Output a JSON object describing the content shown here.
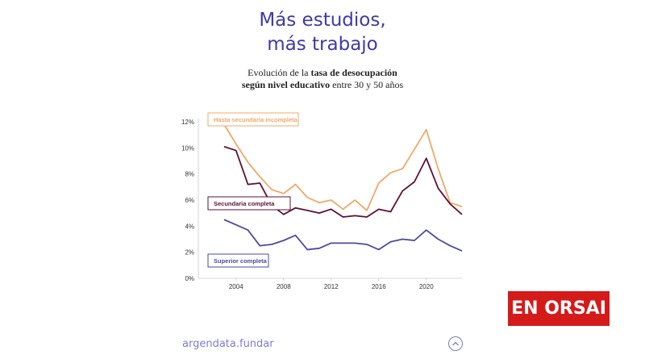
{
  "header": {
    "title_line1": "Más estudios,",
    "title_line2": "más trabajo",
    "subtitle_line1_pre": "Evolución de la ",
    "subtitle_line1_bold": "tasa de desocupación",
    "subtitle_line2_bold": "según nivel educativo",
    "subtitle_line2_post": " entre 30 y 50 años"
  },
  "chart_data": {
    "type": "line",
    "title": "",
    "xlabel": "",
    "ylabel": "",
    "xlim": [
      2003,
      2023
    ],
    "ylim": [
      0,
      12
    ],
    "grid": false,
    "x_ticks": [
      2004,
      2008,
      2012,
      2016,
      2020
    ],
    "x_tick_labels": [
      "2004",
      "2008",
      "2012",
      "2016",
      "2020"
    ],
    "y_ticks": [
      0,
      2,
      4,
      6,
      8,
      10,
      12
    ],
    "y_tick_labels": [
      "0%",
      "2%",
      "4%",
      "6%",
      "8%",
      "10%",
      "12%"
    ],
    "x": [
      2003,
      2004,
      2005,
      2006,
      2007,
      2008,
      2009,
      2010,
      2011,
      2012,
      2013,
      2014,
      2015,
      2016,
      2017,
      2018,
      2019,
      2020,
      2021,
      2022,
      2023
    ],
    "series": [
      {
        "name": "Hasta secundaria incompleta",
        "color": "#f0a868",
        "values": [
          11.8,
          10.3,
          8.9,
          7.8,
          6.8,
          6.5,
          7.2,
          6.2,
          5.8,
          6.0,
          5.3,
          6.0,
          5.2,
          7.3,
          8.1,
          8.4,
          9.9,
          11.4,
          8.4,
          5.8,
          5.5
        ]
      },
      {
        "name": "Secundaria completa",
        "color": "#5c1136",
        "values": [
          10.1,
          9.8,
          7.2,
          7.3,
          5.6,
          4.9,
          5.4,
          5.2,
          5.0,
          5.3,
          4.7,
          4.8,
          4.7,
          5.3,
          5.1,
          6.7,
          7.4,
          9.2,
          6.9,
          5.7,
          4.9
        ]
      },
      {
        "name": "Superior completa",
        "color": "#4a4aa3",
        "values": [
          4.5,
          4.1,
          3.7,
          2.5,
          2.6,
          2.9,
          3.3,
          2.2,
          2.3,
          2.7,
          2.7,
          2.7,
          2.6,
          2.2,
          2.8,
          3.0,
          2.9,
          3.7,
          3.0,
          2.5,
          2.1
        ]
      }
    ]
  },
  "footer": {
    "brand_link": "argendata.fundar",
    "up_icon": "chevron-up-icon",
    "accent_color": "#7a7bd8"
  },
  "logo": {
    "text": "EN ORSAI",
    "background": "#d51a1a"
  }
}
